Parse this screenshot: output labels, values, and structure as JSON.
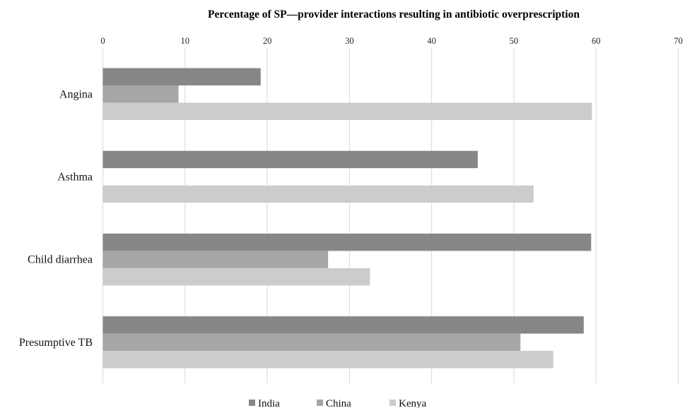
{
  "chart_data": {
    "type": "bar",
    "orientation": "horizontal",
    "title": "Percentage of SP—provider interactions resulting in antibiotic overprescription",
    "xlabel": "",
    "ylabel": "",
    "xlim": [
      0,
      70
    ],
    "ticks": [
      0,
      10,
      20,
      30,
      40,
      50,
      60,
      70
    ],
    "tick_labels": [
      "0",
      "10",
      "20",
      "30",
      "40",
      "50",
      "60",
      "70"
    ],
    "grid": true,
    "legend_position": "bottom",
    "categories": [
      "Angina",
      "Asthma",
      "Child diarrhea",
      "Presumptive TB"
    ],
    "series": [
      {
        "name": "India",
        "color": "#878787",
        "values": [
          19.2,
          45.6,
          59.4,
          58.5
        ]
      },
      {
        "name": "China",
        "color": "#a6a6a6",
        "values": [
          9.2,
          null,
          27.4,
          50.8
        ]
      },
      {
        "name": "Kenya",
        "color": "#cccccc",
        "values": [
          59.5,
          52.4,
          32.5,
          54.8
        ]
      }
    ]
  }
}
